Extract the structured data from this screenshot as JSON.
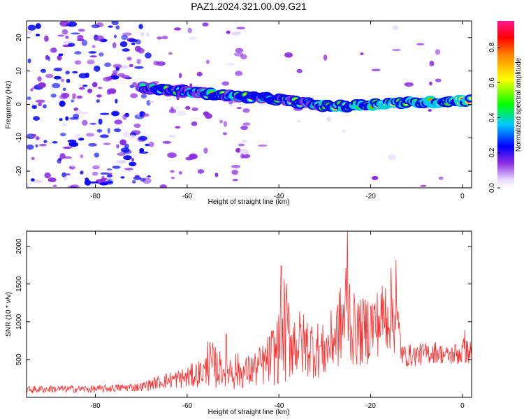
{
  "title": "PAZ1.2024.321.00.09.G21",
  "colors": {
    "snr_line": "#ff2a2a",
    "frame": "#000000"
  },
  "chart_data": [
    {
      "type": "heatmap",
      "name": "spectrogram",
      "xlabel": "Height of straight line (km)",
      "ylabel": "Frequency (Hz)",
      "xlim": [
        -95,
        2
      ],
      "ylim": [
        -25,
        25
      ],
      "xticks": [
        -80,
        -60,
        -40,
        -20,
        0
      ],
      "yticks": [
        -20,
        -10,
        0,
        10,
        20
      ],
      "colorbar": {
        "label": "Normalized spectral amplitude",
        "range": [
          0.0,
          0.95
        ],
        "ticks": [
          0.0,
          0.2,
          0.4,
          0.6,
          0.8
        ]
      },
      "ridge": {
        "description_points": [
          {
            "x": -70,
            "y": 5
          },
          {
            "x": -60,
            "y": 3.8
          },
          {
            "x": -50,
            "y": 2.5
          },
          {
            "x": -40,
            "y": 1.5
          },
          {
            "x": -30,
            "y": -0.5
          },
          {
            "x": -25,
            "y": -0.5
          },
          {
            "x": -20,
            "y": 0
          },
          {
            "x": -15,
            "y": 0.5
          },
          {
            "x": -10,
            "y": 0.5
          },
          {
            "x": -5,
            "y": 0.8
          },
          {
            "x": 0,
            "y": 1.2
          }
        ]
      }
    },
    {
      "type": "line",
      "name": "snr",
      "xlabel": "Height of straight line (km)",
      "ylabel": "SNR (10 * v/v)",
      "xlim": [
        -95,
        2
      ],
      "ylim": [
        0,
        2200
      ],
      "xticks": [
        -80,
        -60,
        -40,
        -20,
        0
      ],
      "yticks": [
        500,
        1000,
        1500,
        2000
      ],
      "envelope": {
        "x": [
          -95,
          -90,
          -80,
          -70,
          -65,
          -60,
          -56,
          -55,
          -52,
          -50,
          -48,
          -45,
          -43,
          -40,
          -39,
          -37,
          -35,
          -32,
          -30,
          -28,
          -26,
          -25,
          -24,
          -22,
          -20,
          -18,
          -16,
          -14.5,
          -13,
          -10,
          -6,
          -3,
          0,
          2
        ],
        "mid": [
          100,
          110,
          110,
          140,
          220,
          260,
          350,
          420,
          360,
          380,
          320,
          380,
          450,
          650,
          900,
          750,
          700,
          650,
          600,
          800,
          1000,
          1300,
          900,
          850,
          950,
          1000,
          1200,
          1050,
          550,
          560,
          600,
          550,
          600,
          600
        ],
        "amp": [
          50,
          50,
          50,
          60,
          100,
          150,
          200,
          350,
          200,
          300,
          200,
          250,
          300,
          500,
          800,
          500,
          450,
          400,
          350,
          450,
          600,
          800,
          500,
          450,
          500,
          450,
          600,
          500,
          150,
          150,
          150,
          120,
          200,
          150
        ]
      },
      "peaks": [
        {
          "x": -55.5,
          "y": 740
        },
        {
          "x": -51.5,
          "y": 840
        },
        {
          "x": -39.5,
          "y": 1740
        },
        {
          "x": -25,
          "y": 2200
        },
        {
          "x": -14.5,
          "y": 1820
        },
        {
          "x": 0.5,
          "y": 890
        }
      ]
    }
  ]
}
